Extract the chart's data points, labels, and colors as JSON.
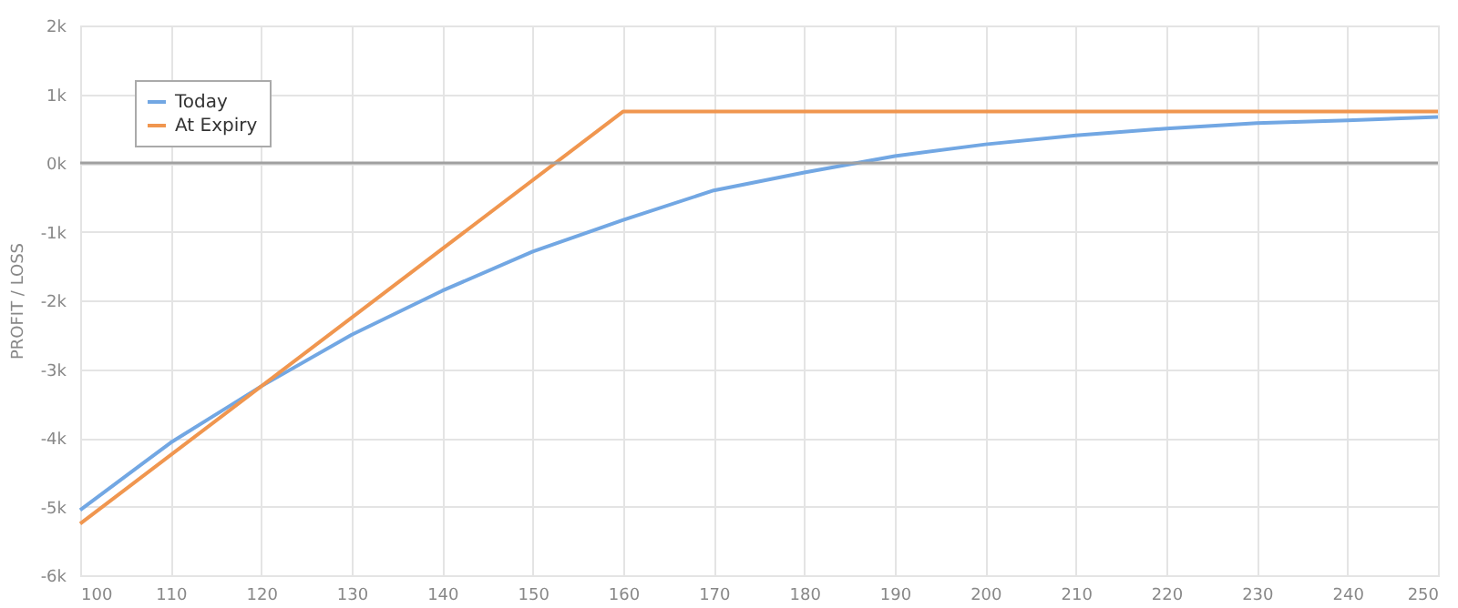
{
  "chart_data": {
    "type": "line",
    "ylabel": "PROFIT / LOSS",
    "x": [
      100,
      110,
      120,
      130,
      140,
      150,
      160,
      170,
      180,
      190,
      200,
      210,
      220,
      230,
      240,
      250
    ],
    "xlim": [
      100,
      250
    ],
    "xticks": [
      100,
      110,
      120,
      130,
      140,
      150,
      160,
      170,
      180,
      190,
      200,
      210,
      220,
      230,
      240,
      250
    ],
    "ylim": [
      -6000,
      2000
    ],
    "yticks": [
      {
        "value": -6000,
        "label": "-6k"
      },
      {
        "value": -5000,
        "label": "-5k"
      },
      {
        "value": -4000,
        "label": "-4k"
      },
      {
        "value": -3000,
        "label": "-3k"
      },
      {
        "value": -2000,
        "label": "-2k"
      },
      {
        "value": -1000,
        "label": "-1k"
      },
      {
        "value": 0,
        "label": "0k"
      },
      {
        "value": 1000,
        "label": "1k"
      },
      {
        "value": 2000,
        "label": "2k"
      }
    ],
    "grid": true,
    "legend": "top left",
    "ref_lines": [
      {
        "axis": "y",
        "value": 0,
        "color": "#a0a0a0"
      }
    ],
    "series": [
      {
        "name": "Today",
        "color": "#72a7e3",
        "values": [
          -5050,
          -4070,
          -3250,
          -2500,
          -1860,
          -1290,
          -830,
          -400,
          -140,
          100,
          270,
          400,
          500,
          580,
          620,
          670
        ]
      },
      {
        "name": "At Expiry",
        "color": "#f0964f",
        "x": [
          100,
          160,
          250
        ],
        "values": [
          -5250,
          750,
          750
        ]
      }
    ]
  }
}
